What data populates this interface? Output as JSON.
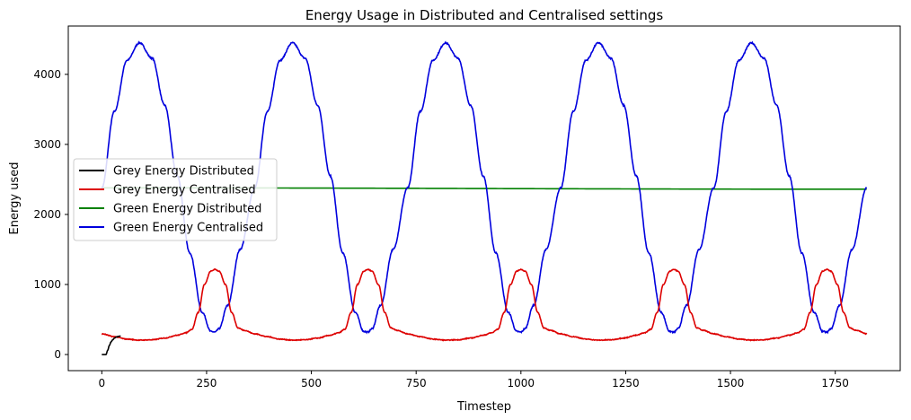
{
  "chart_data": {
    "type": "line",
    "title": "Energy Usage in Distributed and Centralised settings",
    "xlabel": "Timestep",
    "ylabel": "Energy used",
    "xlim": [
      -80,
      1905
    ],
    "ylim": [
      -230,
      4690
    ],
    "xticks": [
      0,
      250,
      500,
      750,
      1000,
      1250,
      1500,
      1750
    ],
    "yticks": [
      0,
      1000,
      2000,
      3000,
      4000
    ],
    "grid": false,
    "legend_position": "center-left",
    "series": [
      {
        "name": "Grey Energy Distributed",
        "color": "#000000",
        "x": [
          0,
          5,
          10,
          14,
          18,
          22,
          26,
          30,
          35,
          40,
          45
        ],
        "y": [
          0,
          0,
          0,
          60,
          130,
          180,
          210,
          235,
          250,
          260,
          265
        ]
      },
      {
        "name": "Grey Energy Centralised",
        "color": "#dd0000",
        "x": [
          0,
          30,
          60,
          90,
          120,
          150,
          180,
          200,
          215,
          230,
          245,
          260,
          270,
          280,
          295,
          310,
          325,
          340,
          365
        ],
        "y": [
          295,
          255,
          220,
          205,
          210,
          235,
          275,
          310,
          360,
          600,
          1000,
          1190,
          1215,
          1190,
          1000,
          600,
          380,
          345,
          295
        ],
        "repeat_period": 365,
        "x_end": 1825,
        "noise": 10
      },
      {
        "name": "Green Energy Distributed",
        "color": "#008000",
        "x": [
          0,
          1825
        ],
        "y": [
          2380,
          2360
        ],
        "hidden_under": "Green Energy Centralised"
      },
      {
        "name": "Green Energy Centralised",
        "color": "#0000dd",
        "x": [
          0,
          30,
          60,
          90,
          120,
          150,
          180,
          210,
          240,
          260,
          270,
          280,
          300,
          330,
          365
        ],
        "y": [
          2380,
          3470,
          4200,
          4450,
          4230,
          3560,
          2550,
          1450,
          600,
          330,
          320,
          370,
          700,
          1500,
          2380
        ],
        "repeat_period": 365,
        "x_end": 1825,
        "noise": 18
      }
    ]
  }
}
